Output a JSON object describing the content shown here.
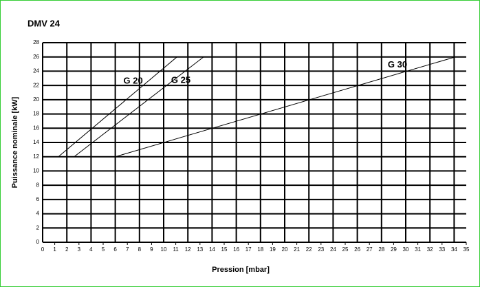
{
  "chart_data": {
    "type": "line",
    "title": "DMV 24",
    "xlabel": "Pression [mbar]",
    "ylabel": "Puissance nominale [kW]",
    "series": [
      {
        "name": "G 20",
        "color": "#000000",
        "x": [
          1.3,
          11.1
        ],
        "values": [
          12,
          26
        ]
      },
      {
        "name": "G 25",
        "color": "#000000",
        "x": [
          2.6,
          13.3
        ],
        "values": [
          12,
          26
        ]
      },
      {
        "name": "G 30",
        "color": "#000000",
        "x": [
          6.0,
          34.1
        ],
        "values": [
          12,
          26
        ]
      }
    ],
    "xlim": [
      0,
      35
    ],
    "ylim": [
      0,
      28
    ],
    "xticks": [
      0,
      1,
      2,
      3,
      4,
      5,
      6,
      7,
      8,
      9,
      10,
      11,
      12,
      13,
      14,
      15,
      16,
      17,
      18,
      19,
      20,
      21,
      22,
      23,
      24,
      25,
      26,
      27,
      28,
      29,
      30,
      31,
      32,
      33,
      34,
      35
    ],
    "yticks": [
      0,
      2,
      4,
      6,
      8,
      10,
      12,
      14,
      16,
      18,
      20,
      22,
      24,
      26,
      28
    ],
    "grid": true
  }
}
